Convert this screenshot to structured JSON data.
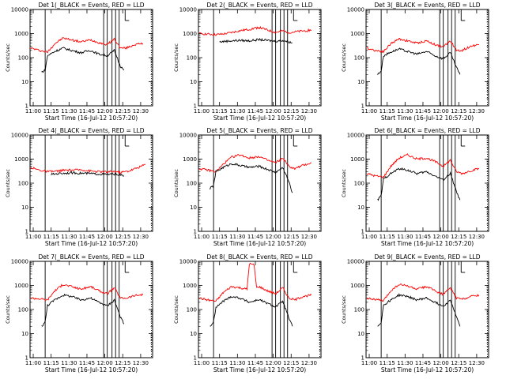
{
  "chart_data": [
    {
      "type": "line",
      "title": "Det  1(_BLACK = Events, RED = LLD",
      "xlabel": "Start Time (16-Jul-12 10:57:20)",
      "ylabel": "Counts/sec",
      "x_ticks": [
        "11:00",
        "11:15",
        "11:30",
        "11:45",
        "12:00",
        "12:15",
        "12:30"
      ],
      "y_ticks": [
        "1",
        "10",
        "100",
        "1000",
        "10000"
      ],
      "y_scale": "log",
      "ylim": [
        1,
        10000
      ],
      "xlim": [
        "10:57:20",
        "12:40:00"
      ],
      "series": [
        {
          "color": "#ff0000",
          "x": [
            "10:58",
            "11:05",
            "11:12",
            "11:18",
            "11:25",
            "11:32",
            "11:40",
            "11:48",
            "11:55",
            "12:02",
            "12:08",
            "12:13",
            "12:18",
            "12:25",
            "12:32"
          ],
          "y": [
            250,
            200,
            170,
            380,
            650,
            550,
            450,
            550,
            420,
            350,
            600,
            250,
            250,
            350,
            380
          ]
        },
        {
          "color": "#000000",
          "x": [
            "11:07",
            "11:10",
            "11:12",
            "11:18",
            "11:25",
            "11:32",
            "11:40",
            "11:48",
            "11:55",
            "12:02",
            "12:08",
            "12:13",
            "12:16"
          ],
          "y": [
            25,
            30,
            120,
            180,
            250,
            200,
            160,
            200,
            140,
            120,
            200,
            45,
            30
          ]
        }
      ]
    },
    {
      "type": "line",
      "title": "Det  2(_BLACK = Events, RED = LLD",
      "xlabel": "Start Time (16-Jul-12 10:57:20)",
      "ylabel": "Counts/sec",
      "x_ticks": [
        "11:00",
        "11:15",
        "11:30",
        "11:45",
        "12:00",
        "12:15",
        "12:30"
      ],
      "y_ticks": [
        "1",
        "10",
        "100",
        "1000",
        "10000"
      ],
      "y_scale": "log",
      "ylim": [
        1,
        10000
      ],
      "xlim": [
        "10:57:20",
        "12:40:00"
      ],
      "series": [
        {
          "color": "#ff0000",
          "x": [
            "10:58",
            "11:05",
            "11:12",
            "11:18",
            "11:25",
            "11:32",
            "11:40",
            "11:48",
            "11:55",
            "12:02",
            "12:08",
            "12:13",
            "12:20",
            "12:32"
          ],
          "y": [
            1000,
            950,
            900,
            950,
            1100,
            1300,
            1500,
            1800,
            1400,
            1100,
            1300,
            1100,
            1200,
            1400
          ]
        },
        {
          "color": "#000000",
          "x": [
            "11:15",
            "11:20",
            "11:25",
            "11:32",
            "11:40",
            "11:48",
            "11:55",
            "12:02",
            "12:08",
            "12:13",
            "12:16"
          ],
          "y": [
            450,
            480,
            500,
            520,
            500,
            560,
            520,
            480,
            520,
            450,
            420
          ]
        }
      ]
    },
    {
      "type": "line",
      "title": "Det  3(_BLACK = Events, RED = LLD",
      "xlabel": "Start Time (16-Jul-12 10:57:20)",
      "ylabel": "Counts/sec",
      "x_ticks": [
        "11:00",
        "11:15",
        "11:30",
        "11:45",
        "12:00",
        "12:15",
        "12:30"
      ],
      "y_ticks": [
        "1",
        "10",
        "100",
        "1000",
        "10000"
      ],
      "y_scale": "log",
      "ylim": [
        1,
        10000
      ],
      "xlim": [
        "10:57:20",
        "12:40:00"
      ],
      "series": [
        {
          "color": "#ff0000",
          "x": [
            "10:58",
            "11:05",
            "11:12",
            "11:18",
            "11:25",
            "11:32",
            "11:40",
            "11:48",
            "11:55",
            "12:02",
            "12:08",
            "12:13",
            "12:18",
            "12:25",
            "12:32"
          ],
          "y": [
            250,
            200,
            180,
            380,
            600,
            500,
            400,
            500,
            350,
            280,
            500,
            200,
            200,
            300,
            350
          ]
        },
        {
          "color": "#000000",
          "x": [
            "11:07",
            "11:10",
            "11:12",
            "11:18",
            "11:25",
            "11:32",
            "11:40",
            "11:48",
            "11:55",
            "12:02",
            "12:08",
            "12:13",
            "12:16"
          ],
          "y": [
            20,
            28,
            120,
            170,
            230,
            180,
            140,
            180,
            120,
            90,
            160,
            40,
            20
          ]
        }
      ]
    },
    {
      "type": "line",
      "title": "Det  4(_BLACK = Events, RED = LLD",
      "xlabel": "Start Time (16-Jul-12 10:57:20)",
      "ylabel": "Counts/sec",
      "x_ticks": [
        "11:00",
        "11:15",
        "11:30",
        "11:45",
        "12:00",
        "12:15",
        "12:30"
      ],
      "y_ticks": [
        "1",
        "10",
        "100",
        "1000",
        "10000"
      ],
      "y_scale": "log",
      "ylim": [
        1,
        10000
      ],
      "xlim": [
        "10:57:20",
        "12:40:00"
      ],
      "series": [
        {
          "color": "#ff0000",
          "x": [
            "10:58",
            "11:05",
            "11:12",
            "11:18",
            "11:25",
            "11:32",
            "11:40",
            "11:48",
            "11:55",
            "12:02",
            "12:08",
            "12:13",
            "12:20",
            "12:28",
            "12:34"
          ],
          "y": [
            450,
            350,
            300,
            310,
            340,
            350,
            360,
            320,
            300,
            290,
            310,
            280,
            320,
            450,
            600
          ]
        },
        {
          "color": "#000000",
          "x": [
            "11:15",
            "11:20",
            "11:25",
            "11:32",
            "11:40",
            "11:48",
            "11:55",
            "12:02",
            "12:08",
            "12:13",
            "12:16"
          ],
          "y": [
            230,
            250,
            260,
            270,
            260,
            250,
            240,
            230,
            240,
            220,
            200
          ]
        }
      ]
    },
    {
      "type": "line",
      "title": "Det  5(_BLACK = Events, RED = LLD",
      "xlabel": "Start Time (16-Jul-12 10:57:20)",
      "ylabel": "Counts/sec",
      "x_ticks": [
        "11:00",
        "11:15",
        "11:30",
        "11:45",
        "12:00",
        "12:15",
        "12:30"
      ],
      "y_ticks": [
        "1",
        "10",
        "100",
        "1000",
        "10000"
      ],
      "y_scale": "log",
      "ylim": [
        1,
        10000
      ],
      "xlim": [
        "10:57:20",
        "12:40:00"
      ],
      "series": [
        {
          "color": "#ff0000",
          "x": [
            "10:58",
            "11:05",
            "11:12",
            "11:18",
            "11:25",
            "11:32",
            "11:40",
            "11:48",
            "11:55",
            "12:02",
            "12:08",
            "12:13",
            "12:18",
            "12:25",
            "12:32"
          ],
          "y": [
            400,
            350,
            300,
            600,
            1200,
            1500,
            1100,
            1300,
            900,
            700,
            1100,
            500,
            400,
            550,
            700
          ]
        },
        {
          "color": "#000000",
          "x": [
            "11:07",
            "11:10",
            "11:12",
            "11:18",
            "11:25",
            "11:32",
            "11:40",
            "11:48",
            "11:55",
            "12:02",
            "12:08",
            "12:13",
            "12:16"
          ],
          "y": [
            60,
            80,
            300,
            450,
            650,
            550,
            450,
            500,
            380,
            280,
            450,
            120,
            40
          ]
        }
      ]
    },
    {
      "type": "line",
      "title": "Det  6(_BLACK = Events, RED = LLD",
      "xlabel": "Start Time (16-Jul-12 10:57:20)",
      "ylabel": "Counts/sec",
      "x_ticks": [
        "11:00",
        "11:15",
        "11:30",
        "11:45",
        "12:00",
        "12:15",
        "12:30"
      ],
      "y_ticks": [
        "1",
        "10",
        "100",
        "1000",
        "10000"
      ],
      "y_scale": "log",
      "ylim": [
        1,
        10000
      ],
      "xlim": [
        "10:57:20",
        "12:40:00"
      ],
      "series": [
        {
          "color": "#ff0000",
          "x": [
            "10:58",
            "11:05",
            "11:12",
            "11:18",
            "11:25",
            "11:32",
            "11:40",
            "11:48",
            "11:55",
            "12:02",
            "12:08",
            "12:13",
            "12:18",
            "12:25",
            "12:32"
          ],
          "y": [
            250,
            200,
            180,
            500,
            1100,
            1500,
            1000,
            1100,
            800,
            500,
            900,
            300,
            250,
            330,
            400
          ]
        },
        {
          "color": "#000000",
          "x": [
            "11:07",
            "11:10",
            "11:12",
            "11:18",
            "11:25",
            "11:32",
            "11:40",
            "11:48",
            "11:55",
            "12:02",
            "12:08",
            "12:13",
            "12:16"
          ],
          "y": [
            20,
            30,
            150,
            250,
            400,
            350,
            250,
            300,
            200,
            140,
            250,
            45,
            20
          ]
        }
      ]
    },
    {
      "type": "line",
      "title": "Det  7(_BLACK = Events, RED = LLD",
      "xlabel": "Start Time (16-Jul-12 10:57:20)",
      "ylabel": "Counts/sec",
      "x_ticks": [
        "11:00",
        "11:15",
        "11:30",
        "11:45",
        "12:00",
        "12:15",
        "12:30"
      ],
      "y_ticks": [
        "1",
        "10",
        "100",
        "1000",
        "10000"
      ],
      "y_scale": "log",
      "ylim": [
        1,
        10000
      ],
      "xlim": [
        "10:57:20",
        "12:40:00"
      ],
      "series": [
        {
          "color": "#ff0000",
          "x": [
            "10:58",
            "11:05",
            "11:12",
            "11:18",
            "11:25",
            "11:32",
            "11:40",
            "11:48",
            "11:55",
            "12:02",
            "12:08",
            "12:13",
            "12:18",
            "12:25",
            "12:32"
          ],
          "y": [
            300,
            280,
            250,
            600,
            1100,
            900,
            700,
            900,
            600,
            450,
            800,
            300,
            300,
            380,
            420
          ]
        },
        {
          "color": "#000000",
          "x": [
            "11:07",
            "11:10",
            "11:12",
            "11:18",
            "11:25",
            "11:32",
            "11:40",
            "11:48",
            "11:55",
            "12:02",
            "12:08",
            "12:13",
            "12:16"
          ],
          "y": [
            20,
            30,
            150,
            250,
            400,
            350,
            250,
            300,
            200,
            140,
            250,
            50,
            25
          ]
        }
      ]
    },
    {
      "type": "line",
      "title": "Det  8(_BLACK = Events, RED = LLD",
      "xlabel": "Start Time (16-Jul-12 10:57:20)",
      "ylabel": "Counts/sec",
      "x_ticks": [
        "11:00",
        "11:15",
        "11:30",
        "11:45",
        "12:00",
        "12:15",
        "12:30"
      ],
      "y_ticks": [
        "1",
        "10",
        "100",
        "1000",
        "10000"
      ],
      "y_scale": "log",
      "ylim": [
        1,
        10000
      ],
      "xlim": [
        "10:57:20",
        "12:40:00"
      ],
      "series": [
        {
          "color": "#ff0000",
          "x": [
            "10:58",
            "11:05",
            "11:12",
            "11:18",
            "11:25",
            "11:32",
            "11:38",
            "11:40",
            "11:44",
            "11:46",
            "11:48",
            "11:55",
            "12:02",
            "12:08",
            "12:13",
            "12:18",
            "12:25",
            "12:32"
          ],
          "y": [
            300,
            250,
            220,
            500,
            900,
            800,
            700,
            8000,
            7000,
            800,
            900,
            600,
            450,
            800,
            300,
            250,
            350,
            400
          ]
        },
        {
          "color": "#000000",
          "x": [
            "11:07",
            "11:10",
            "11:12",
            "11:18",
            "11:25",
            "11:32",
            "11:40",
            "11:48",
            "11:55",
            "12:02",
            "12:08",
            "12:13",
            "12:16"
          ],
          "y": [
            20,
            30,
            120,
            220,
            350,
            300,
            200,
            260,
            180,
            130,
            220,
            45,
            20
          ]
        }
      ]
    },
    {
      "type": "line",
      "title": "Det  9(_BLACK = Events, RED = LLD",
      "xlabel": "Start Time (16-Jul-12 10:57:20)",
      "ylabel": "Counts/sec",
      "x_ticks": [
        "11:00",
        "11:15",
        "11:30",
        "11:45",
        "12:00",
        "12:15",
        "12:30"
      ],
      "y_ticks": [
        "1",
        "10",
        "100",
        "1000",
        "10000"
      ],
      "y_scale": "log",
      "ylim": [
        1,
        10000
      ],
      "xlim": [
        "10:57:20",
        "12:40:00"
      ],
      "series": [
        {
          "color": "#ff0000",
          "x": [
            "10:58",
            "11:05",
            "11:12",
            "11:18",
            "11:25",
            "11:32",
            "11:40",
            "11:48",
            "11:55",
            "12:02",
            "12:08",
            "12:13",
            "12:18",
            "12:25",
            "12:32"
          ],
          "y": [
            300,
            260,
            230,
            600,
            1100,
            950,
            700,
            900,
            600,
            420,
            800,
            300,
            270,
            350,
            400
          ]
        },
        {
          "color": "#000000",
          "x": [
            "11:07",
            "11:10",
            "11:12",
            "11:18",
            "11:25",
            "11:32",
            "11:40",
            "11:48",
            "11:55",
            "12:02",
            "12:08",
            "12:13",
            "12:16"
          ],
          "y": [
            20,
            30,
            150,
            250,
            400,
            350,
            250,
            300,
            200,
            140,
            250,
            50,
            20
          ]
        }
      ]
    }
  ],
  "markers": {
    "solid": [
      "11:10",
      "11:59",
      "12:02",
      "12:06",
      "12:09",
      "12:12"
    ],
    "dotted": [
      "12:39"
    ],
    "short_solid": [
      "12:17"
    ]
  }
}
